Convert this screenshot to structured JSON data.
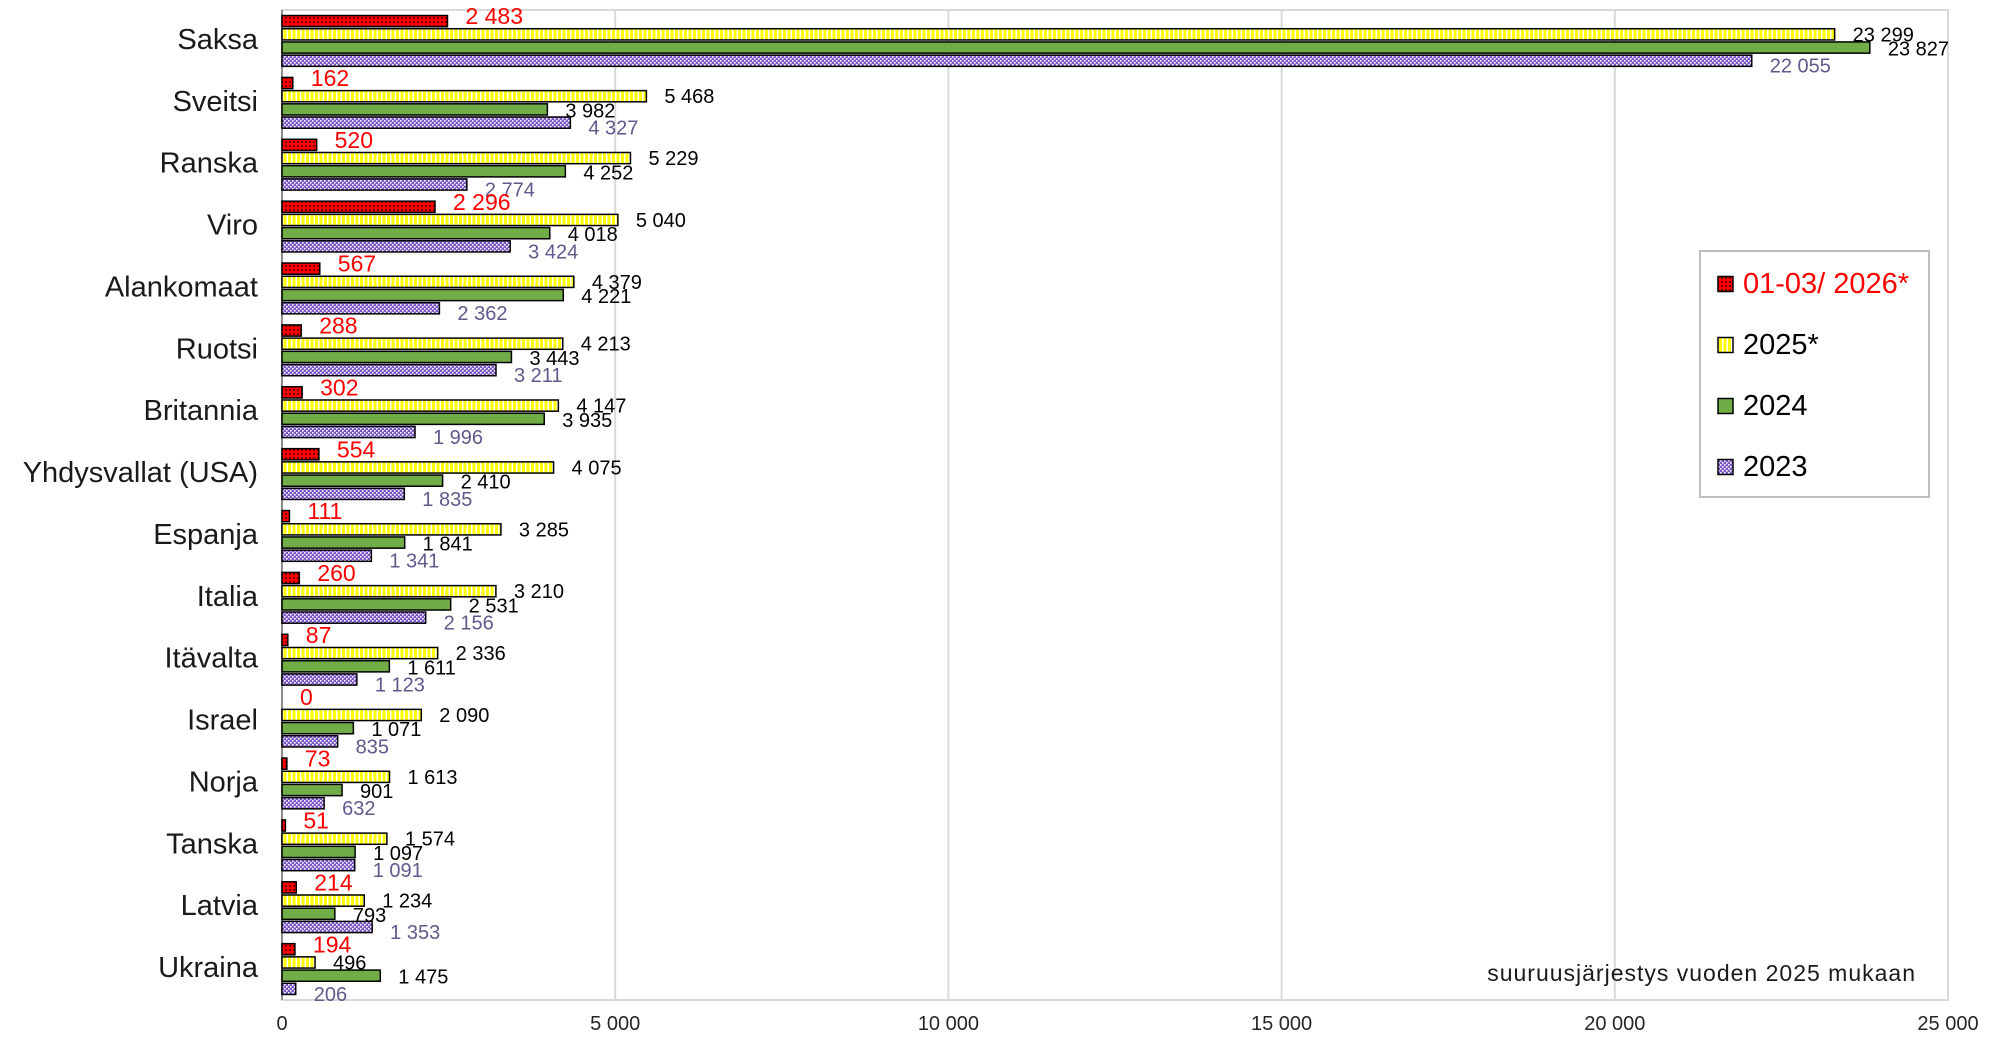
{
  "chart_data": {
    "type": "bar",
    "orientation": "horizontal",
    "categories": [
      "Saksa",
      "Sveitsi",
      "Ranska",
      "Viro",
      "Alankomaat",
      "Ruotsi",
      "Britannia",
      "Yhdysvallat (USA)",
      "Espanja",
      "Italia",
      "Itävalta",
      "Israel",
      "Norja",
      "Tanska",
      "Latvia",
      "Ukraina"
    ],
    "series": [
      {
        "name": "01-03/ 2026*",
        "color": "#ff0000",
        "label_color": "#ff0000",
        "legend_text_color": "#ff0000",
        "values": [
          2483,
          162,
          520,
          2296,
          567,
          288,
          302,
          554,
          111,
          260,
          87,
          0,
          73,
          51,
          214,
          194
        ],
        "data_labels": [
          "2 483",
          "162",
          "520",
          "2 296",
          "567",
          "288",
          "302",
          "554",
          "111",
          "260",
          "87",
          "0",
          "73",
          "51",
          "214",
          "194"
        ]
      },
      {
        "name": "2025*",
        "color": "#ffff00",
        "label_color": "#000000",
        "legend_text_color": "#000000",
        "values": [
          23299,
          5468,
          5229,
          5040,
          4379,
          4213,
          4147,
          4075,
          3285,
          3210,
          2336,
          2090,
          1613,
          1574,
          1234,
          496
        ],
        "data_labels": [
          "23 299",
          "5 468",
          "5 229",
          "5 040",
          "4 379",
          "4 213",
          "4 147",
          "4 075",
          "3 285",
          "3 210",
          "2 336",
          "2 090",
          "1 613",
          "1 574",
          "1 234",
          "496"
        ]
      },
      {
        "name": "2024",
        "color": "#70ad47",
        "label_color": "#000000",
        "legend_text_color": "#000000",
        "values": [
          23827,
          3982,
          4252,
          4018,
          4221,
          3443,
          3935,
          2410,
          1841,
          2531,
          1611,
          1071,
          901,
          1097,
          793,
          1475
        ],
        "data_labels": [
          "23 827",
          "3 982",
          "4 252",
          "4 018",
          "4 221",
          "3 443",
          "3 935",
          "2 410",
          "1 841",
          "2 531",
          "1 611",
          "1 071",
          "901",
          "1 097",
          "793",
          "1 475"
        ]
      },
      {
        "name": "2023",
        "color": "#7c56c9",
        "label_color": "#5f5a8c",
        "legend_text_color": "#000000",
        "values": [
          22055,
          4327,
          2774,
          3424,
          2362,
          3211,
          1996,
          1835,
          1341,
          2156,
          1123,
          835,
          632,
          1091,
          1353,
          206
        ],
        "data_labels": [
          "22 055",
          "4 327",
          "2 774",
          "3 424",
          "2 362",
          "3 211",
          "1 996",
          "1 835",
          "1 341",
          "2 156",
          "1 123",
          "835",
          "632",
          "1 091",
          "1 353",
          "206"
        ]
      }
    ],
    "xlim": [
      0,
      25000
    ],
    "x_ticks": [
      0,
      5000,
      10000,
      15000,
      20000,
      25000
    ],
    "x_tick_labels": [
      "0",
      "5 000",
      "10 000",
      "15 000",
      "20 000",
      "25 000"
    ],
    "grid": true,
    "legend_position": "right",
    "annotation": "suuruusjärjestys vuoden 2025 mukaan"
  }
}
